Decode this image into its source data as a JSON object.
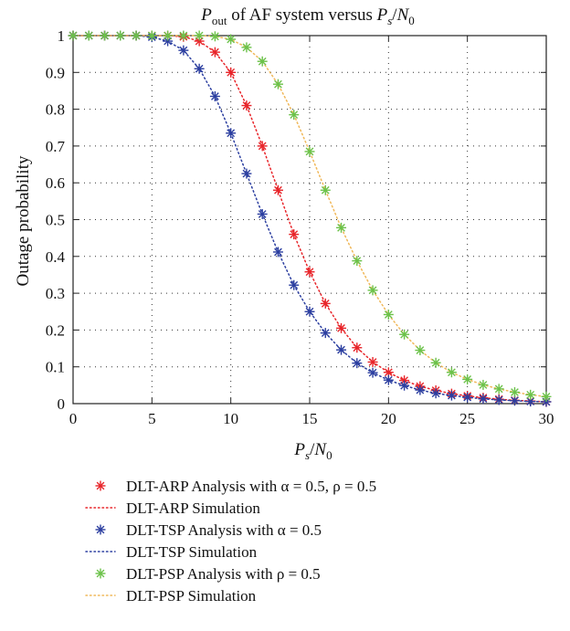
{
  "chart_data": {
    "type": "scatter",
    "title": {
      "main": "P",
      "sub": "out",
      "middle": " of AF system versus ",
      "xvar": "P",
      "xsub": "s",
      "sep": "/",
      "xden": "N",
      "xdensub": "0"
    },
    "xlabel": {
      "var": "P",
      "sub": "s",
      "sep": "/",
      "den": "N",
      "densub": "0"
    },
    "ylabel": "Outage probability",
    "xlim": [
      0,
      30
    ],
    "ylim": [
      0,
      1
    ],
    "xticks": [
      "0",
      "5",
      "10",
      "15",
      "20",
      "25",
      "30"
    ],
    "yticks": [
      "0",
      "0.1",
      "0.2",
      "0.3",
      "0.4",
      "0.5",
      "0.6",
      "0.7",
      "0.8",
      "0.9",
      "1"
    ],
    "grid": true,
    "legend_position": "below",
    "x": [
      0,
      1,
      2,
      3,
      4,
      5,
      6,
      7,
      8,
      9,
      10,
      11,
      12,
      13,
      14,
      15,
      16,
      17,
      18,
      19,
      20,
      21,
      22,
      23,
      24,
      25,
      26,
      27,
      28,
      29,
      30
    ],
    "series": [
      {
        "name": "DLT-ARP Analysis with α = 0.5, ρ = 0.5",
        "style": "marker",
        "color": "#e8252a",
        "values": [
          1,
          1,
          1,
          1,
          1,
          1,
          1,
          0.997,
          0.985,
          0.955,
          0.9,
          0.81,
          0.7,
          0.58,
          0.46,
          0.358,
          0.272,
          0.205,
          0.152,
          0.113,
          0.085,
          0.063,
          0.047,
          0.036,
          0.027,
          0.021,
          0.016,
          0.012,
          0.009,
          0.007,
          0.005
        ]
      },
      {
        "name": "DLT-ARP Simulation",
        "style": "dotted-line",
        "color": "#e8252a",
        "values": [
          1,
          1,
          1,
          1,
          1,
          1,
          1,
          0.997,
          0.985,
          0.955,
          0.9,
          0.81,
          0.7,
          0.58,
          0.46,
          0.358,
          0.272,
          0.205,
          0.152,
          0.113,
          0.085,
          0.063,
          0.047,
          0.036,
          0.027,
          0.021,
          0.016,
          0.012,
          0.009,
          0.007,
          0.005
        ]
      },
      {
        "name": "DLT-TSP Analysis with α = 0.5",
        "style": "marker",
        "color": "#2c3fa0",
        "values": [
          1,
          1,
          1,
          1,
          1,
          0.996,
          0.985,
          0.96,
          0.91,
          0.835,
          0.735,
          0.625,
          0.515,
          0.412,
          0.322,
          0.25,
          0.192,
          0.146,
          0.11,
          0.084,
          0.064,
          0.049,
          0.037,
          0.028,
          0.022,
          0.017,
          0.013,
          0.01,
          0.008,
          0.006,
          0.005
        ]
      },
      {
        "name": "DLT-TSP Simulation",
        "style": "dotted-line",
        "color": "#2c3fa0",
        "values": [
          1,
          1,
          1,
          1,
          1,
          0.996,
          0.985,
          0.96,
          0.91,
          0.835,
          0.735,
          0.625,
          0.515,
          0.412,
          0.322,
          0.25,
          0.192,
          0.146,
          0.11,
          0.084,
          0.064,
          0.049,
          0.037,
          0.028,
          0.022,
          0.017,
          0.013,
          0.01,
          0.008,
          0.006,
          0.005
        ]
      },
      {
        "name": "DLT-PSP Analysis with ρ = 0.5",
        "style": "marker",
        "color": "#6cc24a",
        "values": [
          1,
          1,
          1,
          1,
          1,
          1,
          1,
          1,
          1,
          0.998,
          0.99,
          0.968,
          0.93,
          0.868,
          0.785,
          0.685,
          0.58,
          0.478,
          0.388,
          0.308,
          0.242,
          0.188,
          0.145,
          0.111,
          0.085,
          0.066,
          0.051,
          0.04,
          0.031,
          0.024,
          0.019
        ]
      },
      {
        "name": "DLT-PSP Simulation",
        "style": "dotted-line",
        "color": "#f0b85a",
        "values": [
          1,
          1,
          1,
          1,
          1,
          1,
          1,
          1,
          1,
          0.998,
          0.99,
          0.968,
          0.93,
          0.868,
          0.785,
          0.685,
          0.58,
          0.478,
          0.388,
          0.308,
          0.242,
          0.188,
          0.145,
          0.111,
          0.085,
          0.066,
          0.051,
          0.04,
          0.031,
          0.024,
          0.019
        ]
      }
    ]
  }
}
